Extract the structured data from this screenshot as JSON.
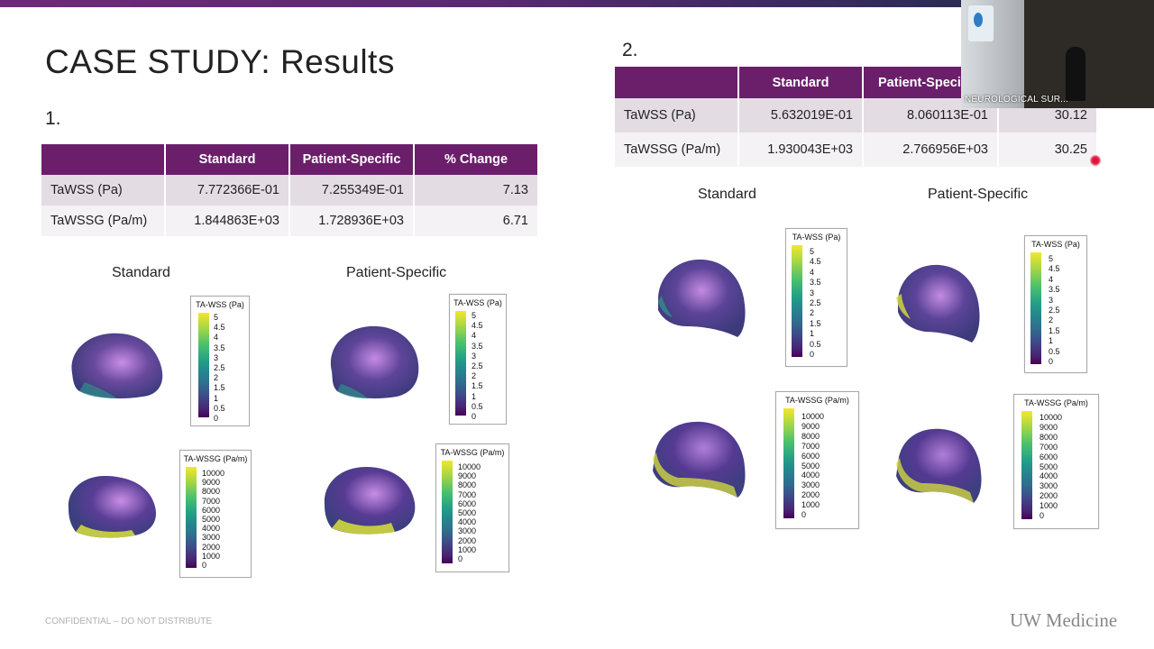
{
  "slide": {
    "title": "CASE STUDY: Results",
    "footer": "CONFIDENTIAL – DO NOT DISTRIBUTE",
    "brand": "UW Medicine"
  },
  "section1": {
    "number": "1.",
    "table": {
      "headers": [
        "",
        "Standard",
        "Patient-Specific",
        "% Change"
      ],
      "rows": [
        [
          "TaWSS (Pa)",
          "7.772366E-01",
          "7.255349E-01",
          "7.13"
        ],
        [
          "TaWSSG (Pa/m)",
          "1.844863E+03",
          "1.728936E+03",
          "6.71"
        ]
      ]
    },
    "left_label": "Standard",
    "right_label": "Patient-Specific"
  },
  "section2": {
    "number": "2.",
    "table": {
      "headers": [
        "",
        "Standard",
        "Patient-Specifi",
        ""
      ],
      "rows": [
        [
          "TaWSS (Pa)",
          "5.632019E-01",
          "8.060113E-01",
          "30.12"
        ],
        [
          "TaWSSG (Pa/m)",
          "1.930043E+03",
          "2.766956E+03",
          "30.25"
        ]
      ]
    },
    "left_label": "Standard",
    "right_label": "Patient-Specific"
  },
  "legends": {
    "wss_title": "TA-WSS (Pa)",
    "wss_ticks": [
      "5",
      "4.5",
      "4",
      "3.5",
      "3",
      "2.5",
      "2",
      "1.5",
      "1",
      "0.5",
      "0"
    ],
    "wssg_title": "TA-WSSG (Pa/m)",
    "wssg_ticks": [
      "10000",
      "9000",
      "8000",
      "7000",
      "6000",
      "5000",
      "4000",
      "3000",
      "2000",
      "1000",
      "0"
    ]
  },
  "video": {
    "caption": "NEUROLOGICAL SUR..."
  },
  "colors": {
    "header_purple": "#6b1f6b",
    "row_shade": "#e3dde3",
    "accent_bar": "#6e2a7a"
  }
}
